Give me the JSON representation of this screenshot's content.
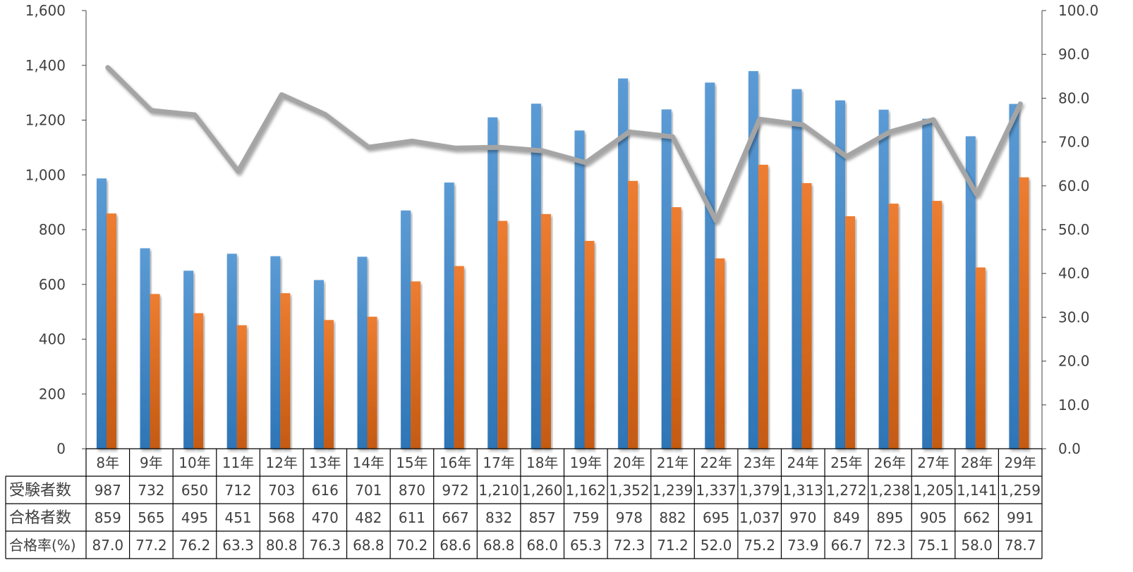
{
  "colors": {
    "series1": "#5B9BD5",
    "series1_dark": "#2E75B6",
    "series2": "#ED7D31",
    "series2_dark": "#C55A11",
    "line": "#A5A5A5",
    "axis": "#404040",
    "border": "#000000",
    "text": "#404040"
  },
  "chart_data": {
    "type": "bar",
    "categories": [
      "8年",
      "9年",
      "10年",
      "11年",
      "12年",
      "13年",
      "14年",
      "15年",
      "16年",
      "17年",
      "18年",
      "19年",
      "20年",
      "21年",
      "22年",
      "23年",
      "24年",
      "25年",
      "26年",
      "27年",
      "28年",
      "29年"
    ],
    "series": [
      {
        "name": "受験者数",
        "type": "bar",
        "axis": "left",
        "values": [
          987,
          732,
          650,
          712,
          703,
          616,
          701,
          870,
          972,
          1210,
          1260,
          1162,
          1352,
          1239,
          1337,
          1379,
          1313,
          1272,
          1238,
          1205,
          1141,
          1259
        ],
        "labels": [
          "987",
          "732",
          "650",
          "712",
          "703",
          "616",
          "701",
          "870",
          "972",
          "1,210",
          "1,260",
          "1,162",
          "1,352",
          "1,239",
          "1,337",
          "1,379",
          "1,313",
          "1,272",
          "1,238",
          "1,205",
          "1,141",
          "1,259"
        ]
      },
      {
        "name": "合格者数",
        "type": "bar",
        "axis": "left",
        "values": [
          859,
          565,
          495,
          451,
          568,
          470,
          482,
          611,
          667,
          832,
          857,
          759,
          978,
          882,
          695,
          1037,
          970,
          849,
          895,
          905,
          662,
          991
        ],
        "labels": [
          "859",
          "565",
          "495",
          "451",
          "568",
          "470",
          "482",
          "611",
          "667",
          "832",
          "857",
          "759",
          "978",
          "882",
          "695",
          "1,037",
          "970",
          "849",
          "895",
          "905",
          "662",
          "991"
        ]
      },
      {
        "name": "合格率(%)",
        "type": "line",
        "axis": "right",
        "values": [
          87.0,
          77.2,
          76.2,
          63.3,
          80.8,
          76.3,
          68.8,
          70.2,
          68.6,
          68.8,
          68.0,
          65.3,
          72.3,
          71.2,
          52.0,
          75.2,
          73.9,
          66.7,
          72.3,
          75.1,
          58.0,
          78.7
        ],
        "labels": [
          "87.0",
          "77.2",
          "76.2",
          "63.3",
          "80.8",
          "76.3",
          "68.8",
          "70.2",
          "68.6",
          "68.8",
          "68.0",
          "65.3",
          "72.3",
          "71.2",
          "52.0",
          "75.2",
          "73.9",
          "66.7",
          "72.3",
          "75.1",
          "58.0",
          "78.7"
        ]
      }
    ],
    "y_left": {
      "range": [
        0,
        1600
      ],
      "ticks": [
        "0",
        "200",
        "400",
        "600",
        "800",
        "1,000",
        "1,200",
        "1,400",
        "1,600"
      ]
    },
    "y_right": {
      "range": [
        0,
        100
      ],
      "ticks": [
        "0.0",
        "10.0",
        "20.0",
        "30.0",
        "40.0",
        "50.0",
        "60.0",
        "70.0",
        "80.0",
        "90.0",
        "100.0"
      ]
    },
    "grid": false,
    "legend": "data-table-below"
  }
}
